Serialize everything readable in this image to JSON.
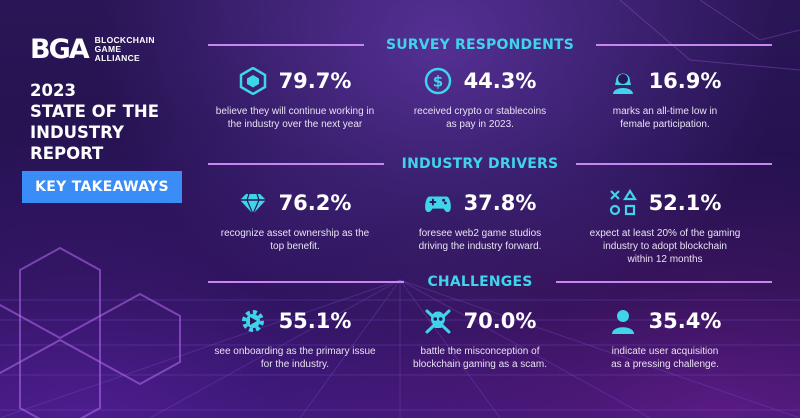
{
  "brand": {
    "logo_mark": "BGA",
    "logo_text": "BLOCKCHAIN\nGAME\nALLIANCE"
  },
  "report_title": "2023\nSTATE OF THE\nINDUSTRY\nREPORT",
  "key_takeaways": "KEY TAKEAWAYS",
  "colors": {
    "accent_cyan": "#3fd4ea",
    "line_violet": "#c886f0",
    "badge_blue": "#3a8df6"
  },
  "sections": [
    {
      "title": "SURVEY RESPONDENTS",
      "stats": [
        {
          "icon": "cube-emblem-icon",
          "value": "79.7%",
          "desc": "believe they will continue working in\nthe industry over the next year"
        },
        {
          "icon": "dollar-coin-icon",
          "value": "44.3%",
          "desc": "received crypto or stablecoins\nas pay in 2023."
        },
        {
          "icon": "female-user-icon",
          "value": "16.9%",
          "desc": "marks an all-time low in\nfemale participation."
        }
      ]
    },
    {
      "title": "INDUSTRY DRIVERS",
      "stats": [
        {
          "icon": "diamond-icon",
          "value": "76.2%",
          "desc": "recognize asset ownership as the\ntop benefit."
        },
        {
          "icon": "gamepad-icon",
          "value": "37.8%",
          "desc": "foresee web2 game studios\ndriving the industry forward."
        },
        {
          "icon": "console-symbols-icon",
          "value": "52.1%",
          "desc": "expect at least 20% of the gaming\nindustry to adopt blockchain\nwithin 12 months"
        }
      ]
    },
    {
      "title": "CHALLENGES",
      "stats": [
        {
          "icon": "onboarding-gear-icon",
          "value": "55.1%",
          "desc": "see onboarding as the primary issue\nfor the industry."
        },
        {
          "icon": "skull-crossbones-icon",
          "value": "70.0%",
          "desc": "battle the misconception of\nblockchain gaming as a scam."
        },
        {
          "icon": "user-acquisition-icon",
          "value": "35.4%",
          "desc": "indicate user acquisition\nas a pressing challenge."
        }
      ]
    }
  ]
}
